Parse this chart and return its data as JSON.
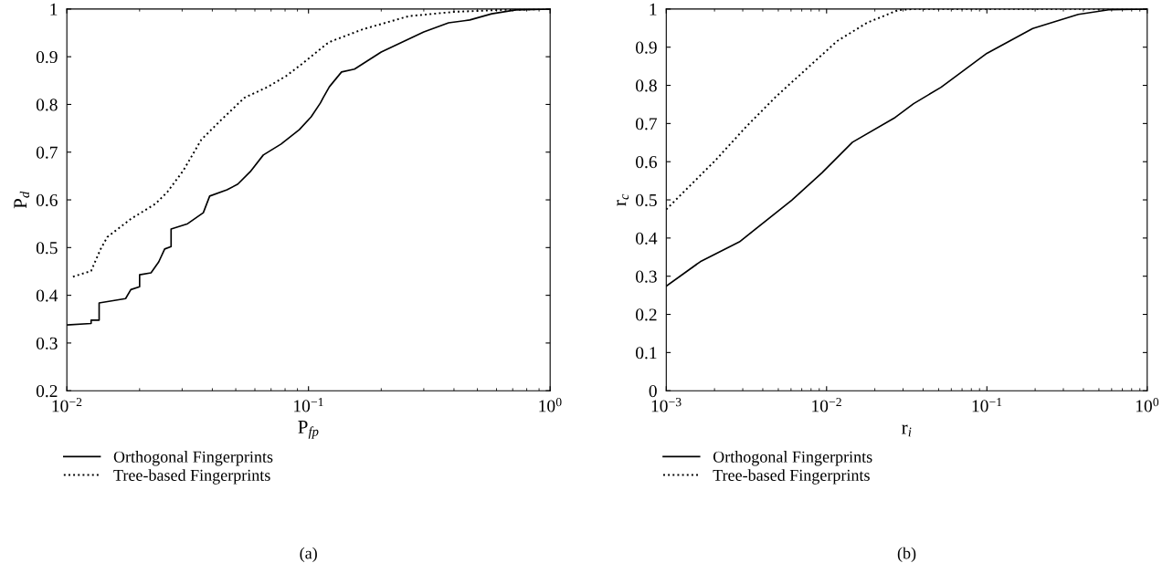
{
  "chart_data": [
    {
      "type": "line",
      "xlabel": "P$_{fp}$",
      "ylabel": "P$_{d}$",
      "log": "x",
      "xlim": [
        0.01,
        1
      ],
      "ylim": [
        0.2,
        1
      ],
      "xticks": [
        {
          "value": 0.01,
          "label": "10$^{−2}$"
        },
        {
          "value": 0.1,
          "label": "10$^{−1}$"
        },
        {
          "value": 1,
          "label": "10$^{0}$"
        }
      ],
      "yticks": [
        0.2,
        0.3,
        0.4,
        0.5,
        0.6,
        0.7,
        0.8,
        0.9,
        1
      ],
      "grid": false,
      "legend": "bottom",
      "annotations": [
        "(a)"
      ],
      "series": [
        {
          "name": "Orthogonal Fingerprints",
          "color": "#000000",
          "line_style": "solid",
          "x": [
            0.01,
            0.0126,
            0.0126,
            0.0136,
            0.0136,
            0.0175,
            0.0184,
            0.02,
            0.02,
            0.0223,
            0.024,
            0.0254,
            0.027,
            0.027,
            0.0316,
            0.0367,
            0.039,
            0.046,
            0.051,
            0.0574,
            0.065,
            0.077,
            0.0916,
            0.1026,
            0.112,
            0.115,
            0.122,
            0.137,
            0.155,
            0.2,
            0.3,
            0.38,
            0.465,
            0.573,
            0.72,
            1
          ],
          "values": [
            0.338,
            0.341,
            0.348,
            0.348,
            0.384,
            0.393,
            0.412,
            0.418,
            0.443,
            0.447,
            0.47,
            0.497,
            0.502,
            0.539,
            0.55,
            0.573,
            0.608,
            0.621,
            0.633,
            0.659,
            0.694,
            0.717,
            0.747,
            0.774,
            0.803,
            0.814,
            0.837,
            0.868,
            0.874,
            0.91,
            0.952,
            0.971,
            0.977,
            0.99,
            0.998,
            1
          ]
        },
        {
          "name": "Tree-based Fingerprints",
          "color": "#000000",
          "line_style": "dotted",
          "x": [
            0.0106,
            0.0126,
            0.0138,
            0.0147,
            0.0184,
            0.0233,
            0.0261,
            0.0303,
            0.036,
            0.043,
            0.0543,
            0.068,
            0.081,
            0.094,
            0.119,
            0.125,
            0.169,
            0.26,
            0.4,
            0.62,
            1
          ],
          "values": [
            0.439,
            0.451,
            0.497,
            0.522,
            0.56,
            0.592,
            0.617,
            0.661,
            0.726,
            0.765,
            0.814,
            0.837,
            0.86,
            0.885,
            0.927,
            0.933,
            0.958,
            0.985,
            0.994,
            0.998,
            1
          ]
        }
      ]
    },
    {
      "type": "line",
      "xlabel": "r$_{i}$",
      "ylabel": "r$_{c}$",
      "log": "x",
      "xlim": [
        0.001,
        1
      ],
      "ylim": [
        0,
        1
      ],
      "xticks": [
        {
          "value": 0.001,
          "label": "10$^{−3}$"
        },
        {
          "value": 0.01,
          "label": "10$^{−2}$"
        },
        {
          "value": 0.1,
          "label": "10$^{−1}$"
        },
        {
          "value": 1,
          "label": "10$^{0}$"
        }
      ],
      "yticks": [
        0,
        0.1,
        0.2,
        0.3,
        0.4,
        0.5,
        0.6,
        0.7,
        0.8,
        0.9,
        1
      ],
      "grid": false,
      "legend": "bottom",
      "annotations": [
        "(b)"
      ],
      "series": [
        {
          "name": "Orthogonal Fingerprints",
          "color": "#000000",
          "line_style": "solid",
          "x": [
            0.001,
            0.00163,
            0.00286,
            0.00607,
            0.00936,
            0.0145,
            0.0268,
            0.0349,
            0.0518,
            0.1,
            0.193,
            0.372,
            0.575,
            1
          ],
          "values": [
            0.274,
            0.338,
            0.39,
            0.499,
            0.571,
            0.651,
            0.716,
            0.752,
            0.795,
            0.884,
            0.949,
            0.986,
            0.998,
            1
          ]
        },
        {
          "name": "Tree-based Fingerprints",
          "color": "#000000",
          "line_style": "dotted",
          "x": [
            0.001,
            0.0013,
            0.00201,
            0.00314,
            0.00485,
            0.00749,
            0.01164,
            0.0179,
            0.0279,
            0.035,
            1
          ],
          "values": [
            0.475,
            0.523,
            0.602,
            0.691,
            0.771,
            0.843,
            0.916,
            0.964,
            0.997,
            1,
            1
          ]
        }
      ]
    }
  ]
}
